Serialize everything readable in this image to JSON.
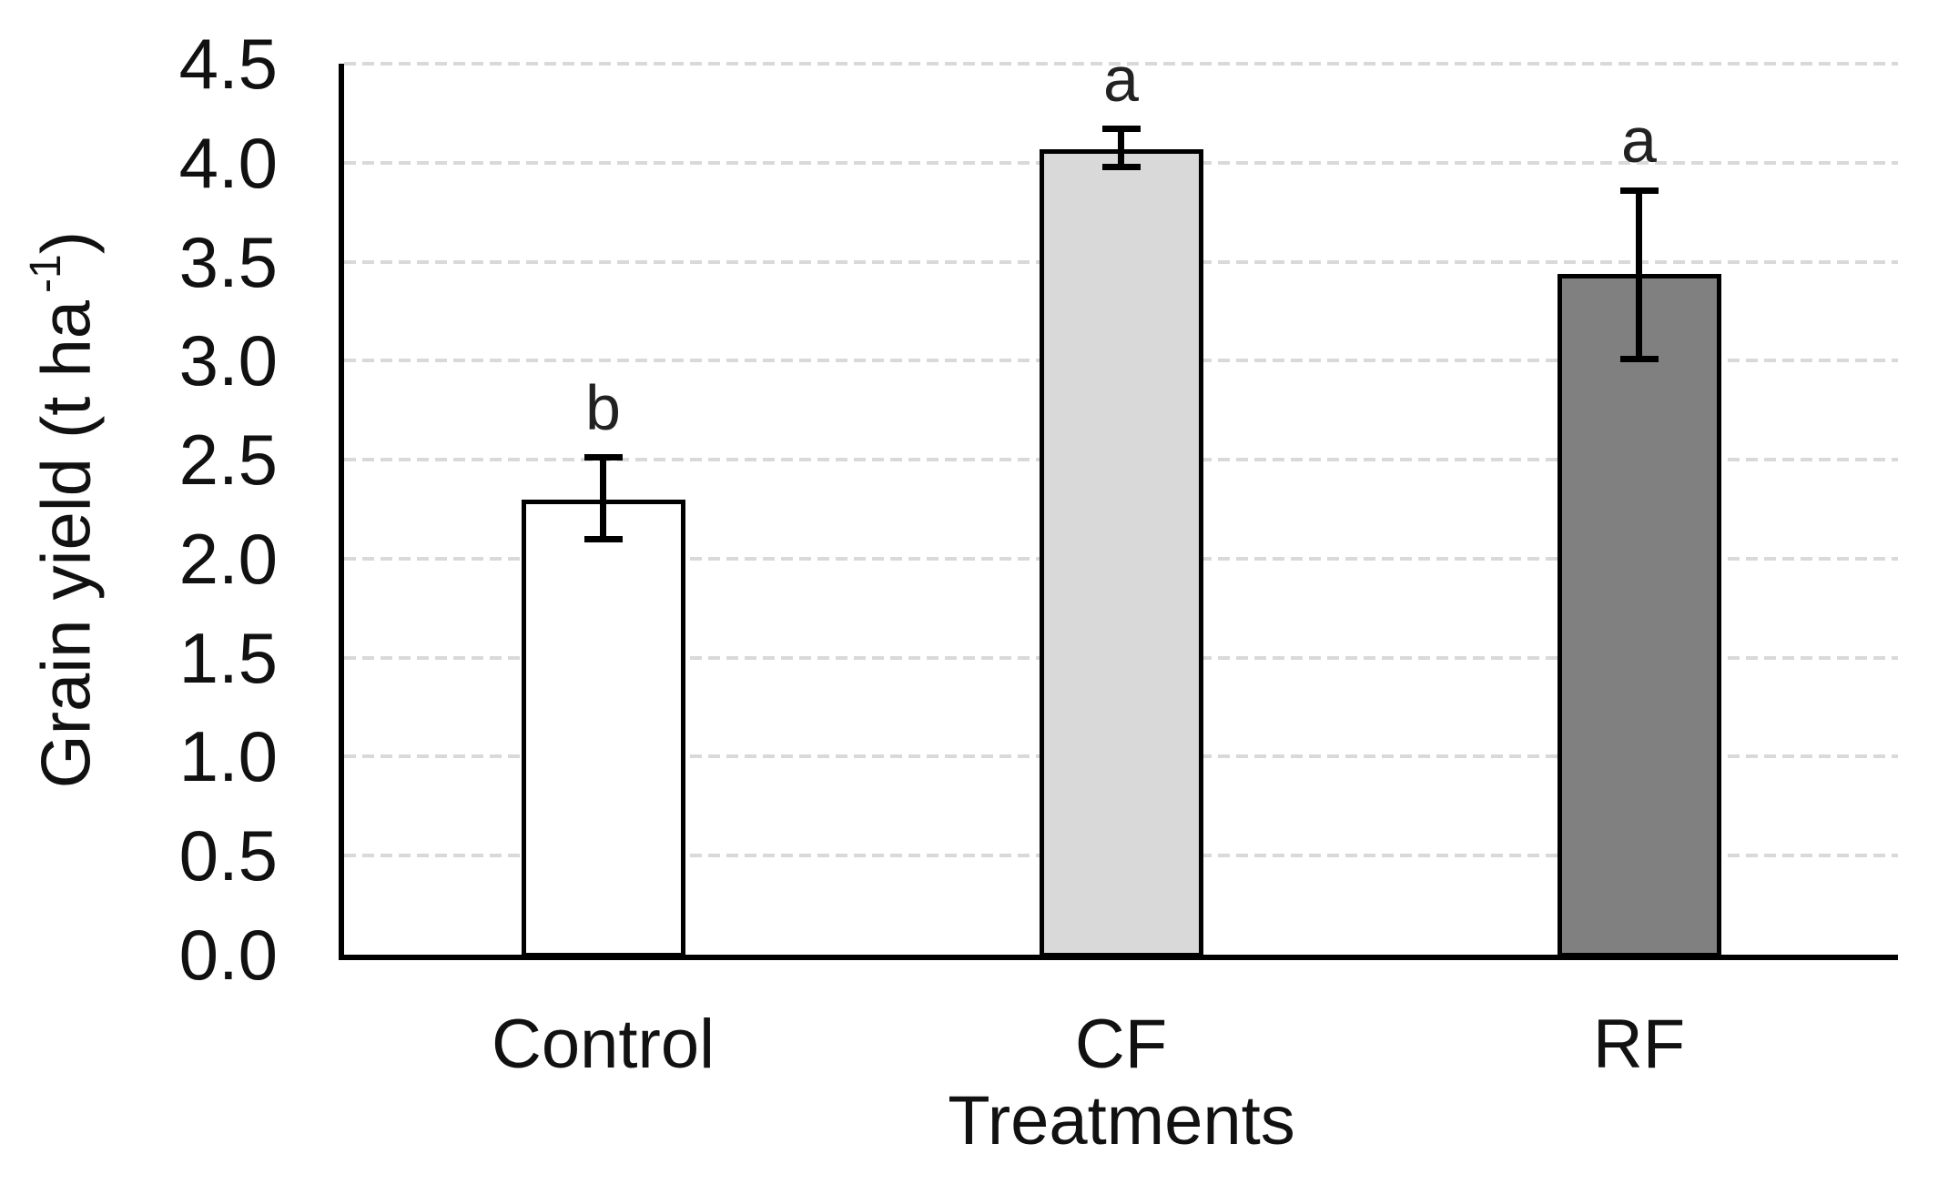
{
  "page": {
    "background": "#ffffff"
  },
  "chart_data": {
    "type": "bar",
    "title": "",
    "xlabel": "Treatments",
    "ylabel": "Grain yield (t ha⁻¹)",
    "ylabel_parts": {
      "main": "Grain yield (t ha",
      "superscript": "-1",
      "close": ")"
    },
    "categories": [
      "Control",
      "CF",
      "RF"
    ],
    "series": [
      {
        "name": "Grain yield (t ha-1)",
        "values": [
          2.3,
          4.07,
          3.44
        ]
      }
    ],
    "error_bars": {
      "plus": [
        0.21,
        0.1,
        0.42
      ],
      "minus": [
        0.2,
        0.09,
        0.43
      ]
    },
    "significance_letters": [
      "b",
      "a",
      "a"
    ],
    "bar_fill_colors": [
      "#ffffff",
      "#d9d9d9",
      "#808080"
    ],
    "bar_border_color": "#000000",
    "yticks": [
      "0.0",
      "0.5",
      "1.0",
      "1.5",
      "2.0",
      "2.5",
      "3.0",
      "3.5",
      "4.0",
      "4.5"
    ],
    "ylim": [
      0.0,
      4.5
    ],
    "ytick_step": 0.5,
    "grid": "horizontal dashed gridlines at every 0.5",
    "gridline_color": "#d9d9d9",
    "axis_color": "#000000",
    "legend_position": "none"
  }
}
